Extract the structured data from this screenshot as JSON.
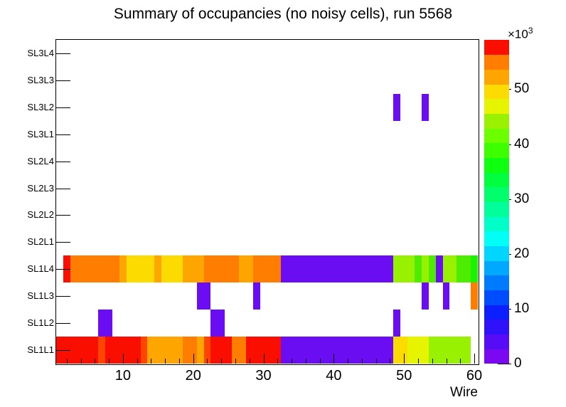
{
  "title": "Summary of occupancies (no noisy cells), run 5568",
  "chart_data": {
    "type": "heatmap",
    "title": "Summary of occupancies (no noisy cells), run 5568",
    "xlabel": "Wire",
    "x_range": [
      0.5,
      60.5
    ],
    "x_major_ticks": [
      10,
      20,
      30,
      40,
      50,
      60
    ],
    "x_minor_tick_step": 2,
    "y_categories": [
      "SL1L1",
      "SL1L2",
      "SL1L3",
      "SL1L4",
      "SL2L1",
      "SL2L2",
      "SL2L3",
      "SL2L4",
      "SL3L1",
      "SL3L2",
      "SL3L3",
      "SL3L4"
    ],
    "grid": false,
    "legend_position": "right-colorbar",
    "z_scale_prefix": "×10",
    "z_scale_exponent": "3",
    "z_ticks": [
      0,
      10,
      20,
      30,
      40,
      50
    ],
    "z_max": 59000,
    "palette": [
      "#7a08f0",
      "#560df5",
      "#2f12fa",
      "#0b1fff",
      "#004cff",
      "#007aff",
      "#00a8ff",
      "#00d6ff",
      "#00fff6",
      "#00ffc8",
      "#00ff9a",
      "#00ff6c",
      "#00ff3e",
      "#0fff10",
      "#3dff00",
      "#6bff00",
      "#99f100",
      "#e6f400",
      "#fcdb00",
      "#ffa500",
      "#ff7d00",
      "#fa0e00"
    ],
    "value_colors": {
      "red": {
        "hex": "#fa0e00",
        "value": 57000
      },
      "orange_red": {
        "hex": "#ff4500",
        "value": 54000
      },
      "orange": {
        "hex": "#ff7d00",
        "value": 51000
      },
      "amber": {
        "hex": "#ffa500",
        "value": 48000
      },
      "yellow": {
        "hex": "#fcdb00",
        "value": 46000
      },
      "pale_yellow": {
        "hex": "#e6f400",
        "value": 44000
      },
      "chartreuse": {
        "hex": "#97f100",
        "value": 41000
      },
      "green": {
        "hex": "#4eec00",
        "value": 38000
      },
      "bright_green": {
        "hex": "#1af200",
        "value": 36000
      },
      "purple": {
        "hex": "#6a0df2",
        "value": 2000
      }
    },
    "rows": [
      {
        "label": "SL1L1",
        "segments": [
          {
            "w1": 1,
            "w2": 6,
            "color": "red",
            "value": 57000
          },
          {
            "w1": 7,
            "w2": 7,
            "color": "orange_red",
            "value": 54000
          },
          {
            "w1": 8,
            "w2": 12,
            "color": "red",
            "value": 57000
          },
          {
            "w1": 13,
            "w2": 13,
            "color": "orange_red",
            "value": 54000
          },
          {
            "w1": 14,
            "w2": 18,
            "color": "amber",
            "value": 48000
          },
          {
            "w1": 19,
            "w2": 20,
            "color": "orange",
            "value": 51000
          },
          {
            "w1": 21,
            "w2": 21,
            "color": "amber",
            "value": 48000
          },
          {
            "w1": 22,
            "w2": 22,
            "color": "orange_red",
            "value": 54000
          },
          {
            "w1": 23,
            "w2": 25,
            "color": "red",
            "value": 57000
          },
          {
            "w1": 26,
            "w2": 27,
            "color": "orange",
            "value": 51000
          },
          {
            "w1": 28,
            "w2": 32,
            "color": "red",
            "value": 57000
          },
          {
            "w1": 33,
            "w2": 48,
            "color": "purple",
            "value": 2000
          },
          {
            "w1": 49,
            "w2": 50,
            "color": "yellow",
            "value": 46000
          },
          {
            "w1": 51,
            "w2": 53,
            "color": "pale_yellow",
            "value": 44000
          },
          {
            "w1": 54,
            "w2": 59,
            "color": "chartreuse",
            "value": 41000
          }
        ]
      },
      {
        "label": "SL1L2",
        "segments": [
          {
            "w1": 7,
            "w2": 8,
            "color": "purple",
            "value": 2000
          },
          {
            "w1": 23,
            "w2": 24,
            "color": "purple",
            "value": 2000
          },
          {
            "w1": 49,
            "w2": 49,
            "color": "purple",
            "value": 2000
          }
        ]
      },
      {
        "label": "SL1L3",
        "segments": [
          {
            "w1": 21,
            "w2": 22,
            "color": "purple",
            "value": 2000
          },
          {
            "w1": 29,
            "w2": 29,
            "color": "purple",
            "value": 2000
          },
          {
            "w1": 53,
            "w2": 53,
            "color": "purple",
            "value": 2000
          },
          {
            "w1": 56,
            "w2": 56,
            "color": "purple",
            "value": 2000
          },
          {
            "w1": 60,
            "w2": 60,
            "color": "orange",
            "value": 51000
          }
        ]
      },
      {
        "label": "SL1L4",
        "segments": [
          {
            "w1": 2,
            "w2": 2,
            "color": "red",
            "value": 57000
          },
          {
            "w1": 3,
            "w2": 9,
            "color": "orange",
            "value": 51000
          },
          {
            "w1": 10,
            "w2": 10,
            "color": "amber",
            "value": 48000
          },
          {
            "w1": 11,
            "w2": 14,
            "color": "yellow",
            "value": 46000
          },
          {
            "w1": 15,
            "w2": 15,
            "color": "amber",
            "value": 48000
          },
          {
            "w1": 16,
            "w2": 18,
            "color": "yellow",
            "value": 46000
          },
          {
            "w1": 19,
            "w2": 21,
            "color": "amber",
            "value": 48000
          },
          {
            "w1": 22,
            "w2": 26,
            "color": "orange",
            "value": 51000
          },
          {
            "w1": 27,
            "w2": 28,
            "color": "amber",
            "value": 48000
          },
          {
            "w1": 29,
            "w2": 32,
            "color": "orange",
            "value": 51000
          },
          {
            "w1": 33,
            "w2": 48,
            "color": "purple",
            "value": 2000
          },
          {
            "w1": 49,
            "w2": 51,
            "color": "chartreuse",
            "value": 41000
          },
          {
            "w1": 52,
            "w2": 52,
            "color": "green",
            "value": 38000
          },
          {
            "w1": 53,
            "w2": 53,
            "color": "chartreuse",
            "value": 41000
          },
          {
            "w1": 54,
            "w2": 54,
            "color": "green",
            "value": 38000
          },
          {
            "w1": 55,
            "w2": 55,
            "color": "purple",
            "value": 2000
          },
          {
            "w1": 56,
            "w2": 57,
            "color": "chartreuse",
            "value": 41000
          },
          {
            "w1": 58,
            "w2": 59,
            "color": "green",
            "value": 38000
          },
          {
            "w1": 60,
            "w2": 60,
            "color": "bright_green",
            "value": 36000
          }
        ]
      },
      {
        "label": "SL2L1",
        "segments": []
      },
      {
        "label": "SL2L2",
        "segments": []
      },
      {
        "label": "SL2L3",
        "segments": []
      },
      {
        "label": "SL2L4",
        "segments": []
      },
      {
        "label": "SL3L1",
        "segments": []
      },
      {
        "label": "SL3L2",
        "segments": [
          {
            "w1": 49,
            "w2": 49,
            "color": "purple",
            "value": 2000
          },
          {
            "w1": 53,
            "w2": 53,
            "color": "purple",
            "value": 2000
          }
        ]
      },
      {
        "label": "SL3L3",
        "segments": []
      },
      {
        "label": "SL3L4",
        "segments": []
      }
    ]
  }
}
